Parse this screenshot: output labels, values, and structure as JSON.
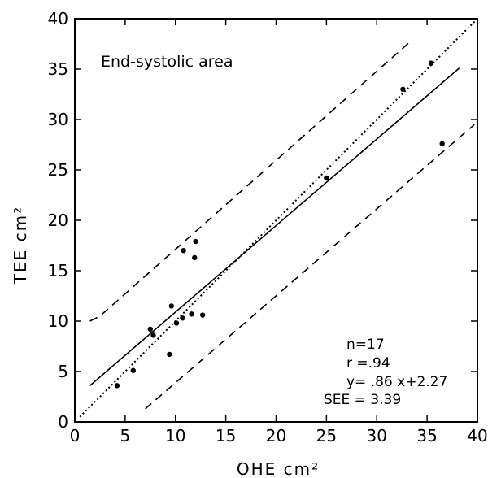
{
  "chart_data": {
    "type": "scatter",
    "title": "End-systolic area",
    "xlabel": "OHE cm²",
    "ylabel": "TEE cm²",
    "xlim": [
      0,
      40
    ],
    "ylim": [
      0,
      40
    ],
    "xticks": [
      0,
      5,
      10,
      15,
      20,
      25,
      30,
      35,
      40
    ],
    "yticks": [
      0,
      5,
      10,
      15,
      20,
      25,
      30,
      35,
      40
    ],
    "grid": false,
    "points": [
      {
        "x": 4.2,
        "y": 3.6
      },
      {
        "x": 5.8,
        "y": 5.1
      },
      {
        "x": 7.5,
        "y": 9.2
      },
      {
        "x": 7.8,
        "y": 8.6
      },
      {
        "x": 9.4,
        "y": 6.7
      },
      {
        "x": 9.6,
        "y": 11.5
      },
      {
        "x": 10.1,
        "y": 9.8
      },
      {
        "x": 10.7,
        "y": 10.3
      },
      {
        "x": 11.6,
        "y": 10.7
      },
      {
        "x": 12.7,
        "y": 10.6
      },
      {
        "x": 10.8,
        "y": 17.0
      },
      {
        "x": 11.9,
        "y": 16.3
      },
      {
        "x": 12.0,
        "y": 17.9
      },
      {
        "x": 25.0,
        "y": 24.2
      },
      {
        "x": 32.6,
        "y": 33.0
      },
      {
        "x": 35.4,
        "y": 35.6
      },
      {
        "x": 36.5,
        "y": 27.6
      }
    ],
    "lines": [
      {
        "style": "solid",
        "x": [
          1.5,
          38.2
        ],
        "y": [
          3.6,
          35.1
        ]
      },
      {
        "style": "dotted",
        "x": [
          0.5,
          40
        ],
        "y": [
          0.5,
          40
        ]
      },
      {
        "style": "dashed",
        "x": [
          1.5,
          2.5,
          33.3
        ],
        "y": [
          10.0,
          10.5,
          37.7
        ]
      },
      {
        "style": "dashed",
        "x": [
          7.0,
          39.7
        ],
        "y": [
          1.3,
          29.5
        ]
      }
    ],
    "annotations": [
      "n=17",
      "r =.94",
      "y= .86 x+2.27",
      "SEE = 3.39"
    ]
  }
}
